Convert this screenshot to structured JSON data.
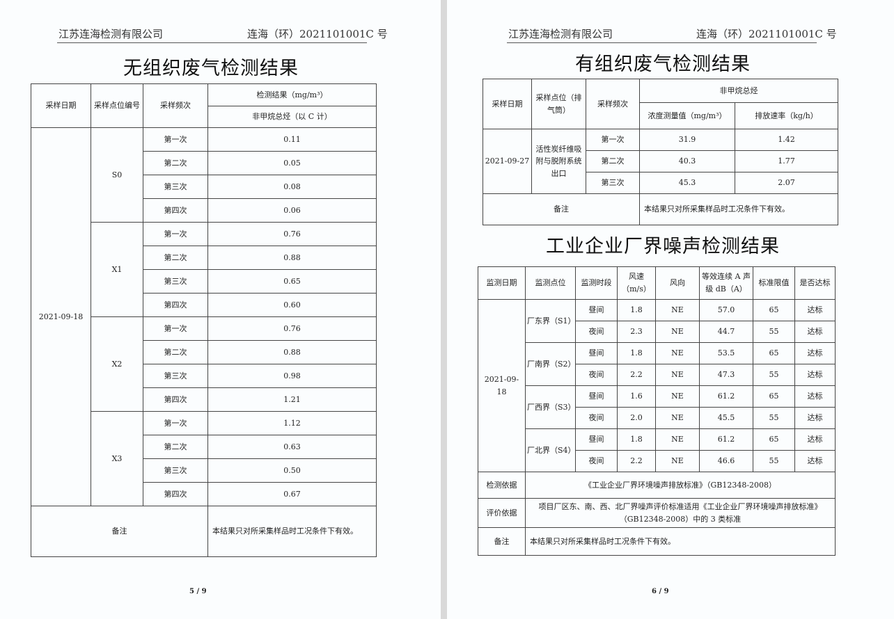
{
  "page1": {
    "company": "江苏连海检测有限公司",
    "report_no": "连海（环）2021101001C 号",
    "title": "无组织废气检测结果",
    "headers": {
      "date": "采样日期",
      "point": "采样点位编号",
      "freq": "采样频次",
      "result": "检测结果（mg/m³）",
      "pollutant": "非甲烷总烃（以 C 计）"
    },
    "date": "2021-09-18",
    "groups": [
      {
        "point": "S0",
        "rows": [
          [
            "第一次",
            "0.11"
          ],
          [
            "第二次",
            "0.05"
          ],
          [
            "第三次",
            "0.08"
          ],
          [
            "第四次",
            "0.06"
          ]
        ]
      },
      {
        "point": "X1",
        "rows": [
          [
            "第一次",
            "0.76"
          ],
          [
            "第二次",
            "0.88"
          ],
          [
            "第三次",
            "0.65"
          ],
          [
            "第四次",
            "0.60"
          ]
        ]
      },
      {
        "point": "X2",
        "rows": [
          [
            "第一次",
            "0.76"
          ],
          [
            "第二次",
            "0.88"
          ],
          [
            "第三次",
            "0.98"
          ],
          [
            "第四次",
            "1.21"
          ]
        ]
      },
      {
        "point": "X3",
        "rows": [
          [
            "第一次",
            "1.12"
          ],
          [
            "第二次",
            "0.63"
          ],
          [
            "第三次",
            "0.50"
          ],
          [
            "第四次",
            "0.67"
          ]
        ]
      }
    ],
    "note_label": "备注",
    "note": "本结果只对所采集样品时工况条件下有效。",
    "page_num": "5 / 9"
  },
  "page2": {
    "company": "江苏连海检测有限公司",
    "report_no": "连海（环）2021101001C 号",
    "title1": "有组织废气检测结果",
    "t1": {
      "headers": {
        "date": "采样日期",
        "point": "采样点位（排气筒）",
        "freq": "采样频次",
        "pollutant": "非甲烷总烃",
        "conc": "浓度测量值（mg/m³）",
        "rate": "排放速率（kg/h）"
      },
      "date": "2021-09-27",
      "point": "活性炭纤维吸附与脱附系统出口",
      "rows": [
        [
          "第一次",
          "31.9",
          "1.42"
        ],
        [
          "第二次",
          "40.3",
          "1.77"
        ],
        [
          "第三次",
          "45.3",
          "2.07"
        ]
      ],
      "note_label": "备注",
      "note": "本结果只对所采集样品时工况条件下有效。"
    },
    "title2": "工业企业厂界噪声检测结果",
    "t2": {
      "headers": [
        "监测日期",
        "监测点位",
        "监测时段",
        "风速（m/s）",
        "风向",
        "等效连续 A 声级 dB（A）",
        "标准限值",
        "是否达标"
      ],
      "date": "2021-09-18",
      "groups": [
        {
          "point": "厂东界（S1）",
          "rows": [
            [
              "昼间",
              "1.8",
              "NE",
              "57.0",
              "65",
              "达标"
            ],
            [
              "夜间",
              "2.3",
              "NE",
              "44.7",
              "55",
              "达标"
            ]
          ]
        },
        {
          "point": "厂南界（S2）",
          "rows": [
            [
              "昼间",
              "1.8",
              "NE",
              "53.5",
              "65",
              "达标"
            ],
            [
              "夜间",
              "2.2",
              "NE",
              "47.3",
              "55",
              "达标"
            ]
          ]
        },
        {
          "point": "厂西界（S3）",
          "rows": [
            [
              "昼间",
              "1.6",
              "NE",
              "61.2",
              "65",
              "达标"
            ],
            [
              "夜间",
              "2.0",
              "NE",
              "45.5",
              "55",
              "达标"
            ]
          ]
        },
        {
          "point": "厂北界（S4）",
          "rows": [
            [
              "昼间",
              "1.8",
              "NE",
              "61.2",
              "65",
              "达标"
            ],
            [
              "夜间",
              "2.2",
              "NE",
              "46.6",
              "55",
              "达标"
            ]
          ]
        }
      ],
      "basis_label": "检测依据",
      "basis": "《工业企业厂界环境噪声排放标准》（GB12348-2008）",
      "eval_label": "评价依据",
      "eval": "项目厂区东、南、西、北厂界噪声评价标准适用《工业企业厂界环境噪声排放标准》（GB12348-2008）中的 3 类标准",
      "note_label": "备注",
      "note": "本结果只对所采集样品时工况条件下有效。"
    },
    "page_num": "6 / 9"
  }
}
